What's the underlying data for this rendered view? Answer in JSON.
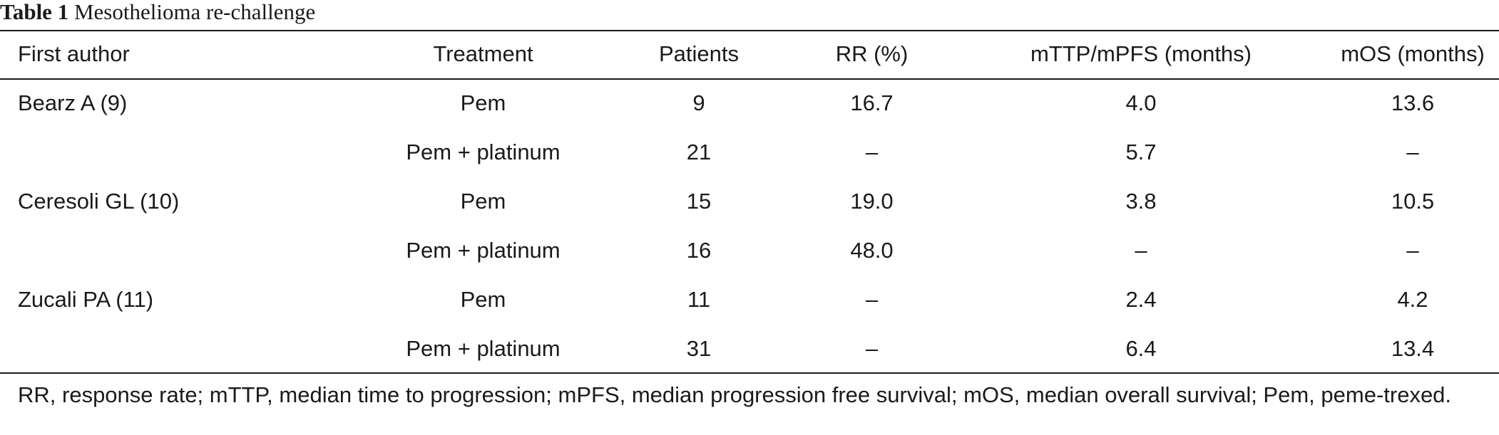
{
  "caption": {
    "label": "Table 1",
    "title": "Mesothelioma re-challenge"
  },
  "table": {
    "headers": [
      "First author",
      "Treatment",
      "Patients",
      "RR (%)",
      "mTTP/mPFS (months)",
      "mOS (months)"
    ],
    "rows": [
      [
        "Bearz A (9)",
        "Pem",
        "9",
        "16.7",
        "4.0",
        "13.6"
      ],
      [
        "",
        "Pem + platinum",
        "21",
        "–",
        "5.7",
        "–"
      ],
      [
        "Ceresoli GL (10)",
        "Pem",
        "15",
        "19.0",
        "3.8",
        "10.5"
      ],
      [
        "",
        "Pem + platinum",
        "16",
        "48.0",
        "–",
        "–"
      ],
      [
        "Zucali PA (11)",
        "Pem",
        "11",
        "–",
        "2.4",
        "4.2"
      ],
      [
        "",
        "Pem + platinum",
        "31",
        "–",
        "6.4",
        "13.4"
      ]
    ]
  },
  "footnote": "RR, response rate; mTTP, median time to progression; mPFS, median progression free survival; mOS, median overall survival; Pem, peme-trexed."
}
